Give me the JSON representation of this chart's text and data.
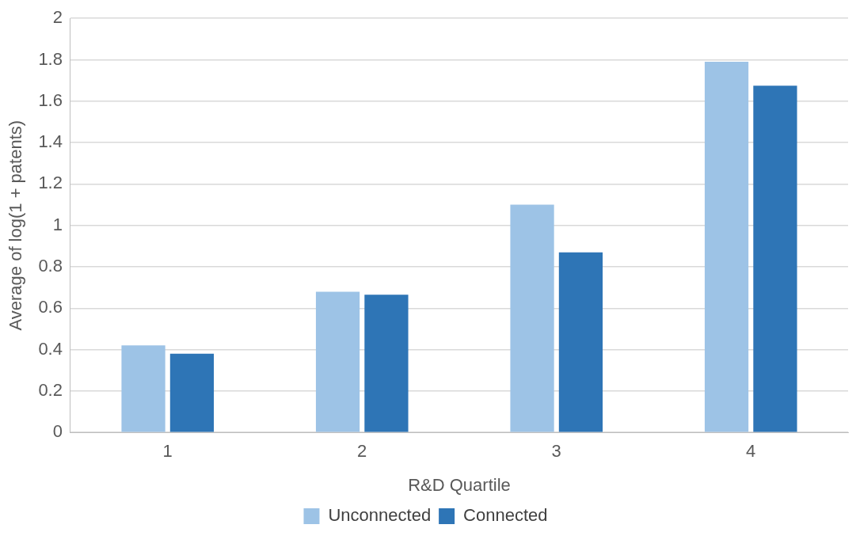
{
  "chart_data": {
    "type": "bar",
    "xlabel": "R&D Quartile",
    "ylabel": "Average of log(1 + patents)",
    "categories": [
      "1",
      "2",
      "3",
      "4"
    ],
    "series": [
      {
        "name": "Unconnected",
        "color": "#9dc3e6",
        "values": [
          0.42,
          0.68,
          1.1,
          1.79
        ]
      },
      {
        "name": "Connected",
        "color": "#2e75b6",
        "values": [
          0.38,
          0.665,
          0.87,
          1.675
        ]
      }
    ],
    "ylim": [
      0,
      2
    ],
    "yticks": [
      0,
      0.2,
      0.4,
      0.6,
      0.8,
      1,
      1.2,
      1.4,
      1.6,
      1.8,
      2
    ],
    "grid": "y",
    "legend": "bottom"
  }
}
